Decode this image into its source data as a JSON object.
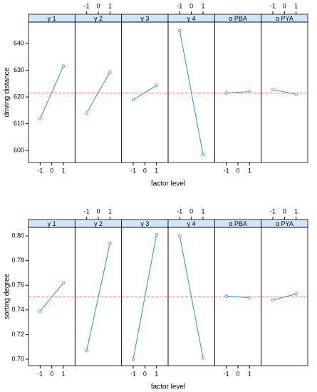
{
  "chart_data": [
    {
      "type": "line",
      "ylabel": "driving distance",
      "xlabel": "factor level",
      "x": [
        -1,
        1
      ],
      "xlim": [
        -2,
        2
      ],
      "xticks": [
        -1,
        0,
        1
      ],
      "ylim": [
        595.5,
        648
      ],
      "yticks": [
        600,
        610,
        620,
        630,
        640
      ],
      "reference": 621.5,
      "color": "#2b8fd6",
      "reference_color": "#e8707a",
      "strip_color": "#cfe6fb",
      "panels": [
        {
          "name": "γ 1",
          "values": [
            611.9,
            631.6
          ]
        },
        {
          "name": "γ 2",
          "values": [
            614,
            629.3
          ]
        },
        {
          "name": "γ 3",
          "values": [
            619,
            624.3
          ]
        },
        {
          "name": "γ 4",
          "values": [
            644.8,
            598.5
          ]
        },
        {
          "name": "α PBA",
          "values": [
            621.5,
            622
          ]
        },
        {
          "name": "α PYA",
          "values": [
            622.8,
            621
          ]
        }
      ]
    },
    {
      "type": "line",
      "ylabel": "sorting degree",
      "xlabel": "factor level",
      "x": [
        -1,
        1
      ],
      "xlim": [
        -2,
        2
      ],
      "xticks": [
        -1,
        0,
        1
      ],
      "ylim": [
        0.6948,
        0.807
      ],
      "yticks": [
        {
          "value": 0.7,
          "label": "0.70"
        },
        0.72,
        0.74,
        0.76,
        0.78,
        {
          "value": 0.8,
          "label": "0.80"
        }
      ],
      "reference": 0.7505,
      "color": "#2b8fd6",
      "reference_color": "#e8707a",
      "strip_color": "#cfe6fb",
      "panels": [
        {
          "name": "γ 1",
          "values": [
            0.739,
            0.762
          ]
        },
        {
          "name": "γ 2",
          "values": [
            0.707,
            0.794
          ]
        },
        {
          "name": "γ 3",
          "values": [
            0.7,
            0.801
          ]
        },
        {
          "name": "γ 4",
          "values": [
            0.8,
            0.701
          ]
        },
        {
          "name": "α PBA",
          "values": [
            0.751,
            0.75
          ]
        },
        {
          "name": "α PYA",
          "values": [
            0.748,
            0.753
          ]
        }
      ]
    }
  ]
}
